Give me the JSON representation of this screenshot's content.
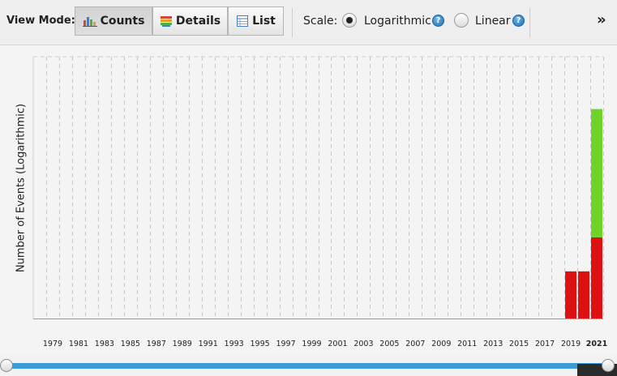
{
  "toolbar": {
    "view_mode_label": "View Mode:",
    "buttons": [
      {
        "label": "Counts",
        "icon": "bar-chart-icon",
        "selected": true
      },
      {
        "label": "Details",
        "icon": "details-icon",
        "selected": false
      },
      {
        "label": "List",
        "icon": "list-icon",
        "selected": false
      }
    ],
    "scale_label": "Scale:",
    "scale_options": [
      {
        "label": "Logarithmic",
        "selected": true
      },
      {
        "label": "Linear",
        "selected": false
      }
    ],
    "help_glyph": "?",
    "more_glyph": "»"
  },
  "chart_data": {
    "type": "bar",
    "ylabel": "Number of Events (Logarithmic)",
    "y_scale": "log",
    "tick_labels": [
      "1979",
      "1981",
      "1983",
      "1985",
      "1987",
      "1989",
      "1991",
      "1993",
      "1995",
      "1997",
      "1999",
      "2001",
      "2003",
      "2005",
      "2007",
      "2009",
      "2011",
      "2013",
      "2015",
      "2017",
      "2019",
      "2021"
    ],
    "highlighted_tick": "2021",
    "year_range": [
      1979,
      2021
    ],
    "grid": true,
    "series": [
      {
        "color": "#dd1111",
        "values": {
          "2020": 0.18,
          "2021": 0.18,
          "2022": 0.31
        }
      },
      {
        "color": "#6fd42a",
        "values": {
          "2022": 0.49
        }
      }
    ],
    "value_units": "fraction of plot height"
  },
  "colors": {
    "slider_track": "#3a9bd5",
    "red_series": "#dd1111",
    "green_series": "#6fd42a"
  }
}
